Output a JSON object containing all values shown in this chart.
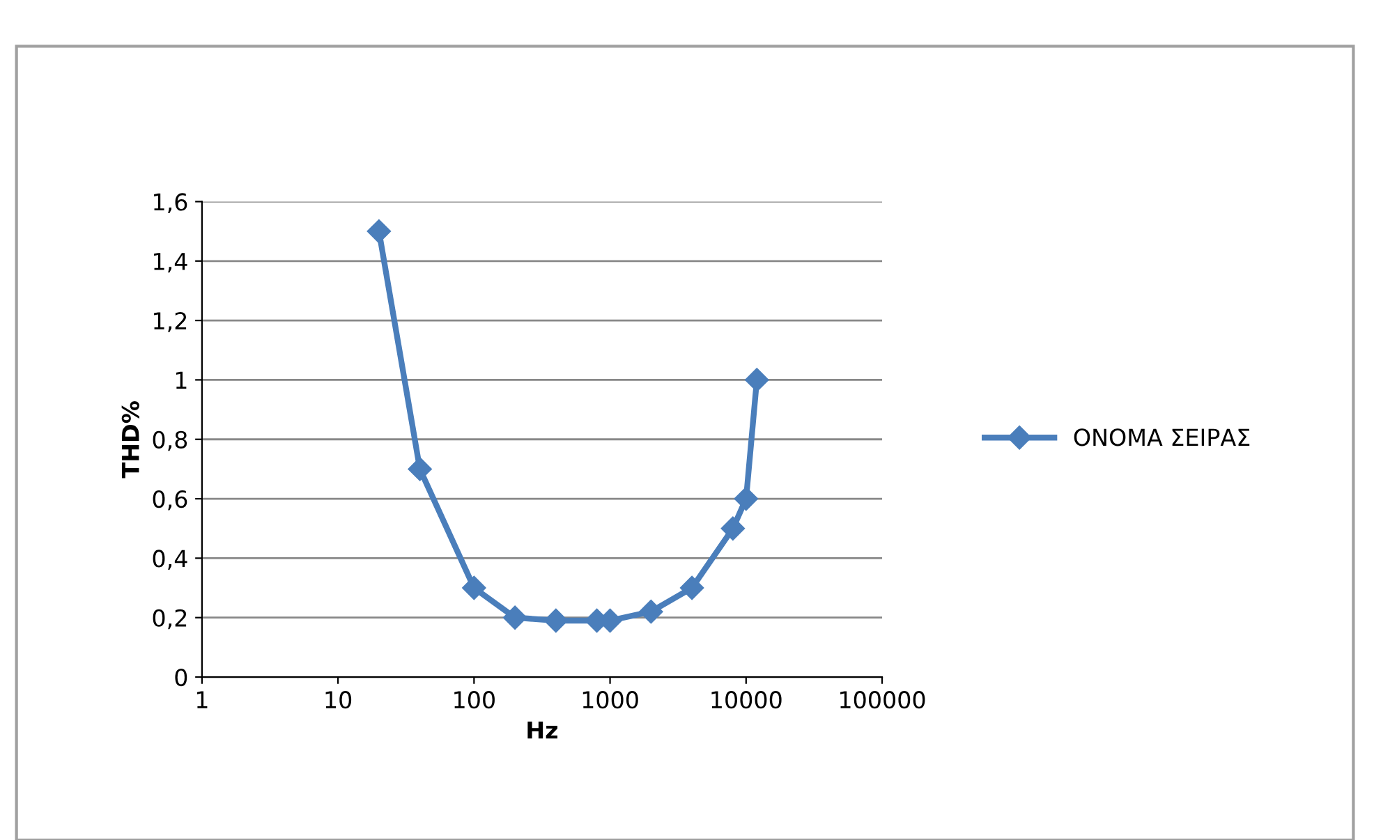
{
  "chart_data": {
    "type": "line",
    "xlabel": "Hz",
    "ylabel": "THD%",
    "log": "x",
    "x": [
      20,
      40,
      100,
      200,
      400,
      800,
      1000,
      2000,
      4000,
      8000,
      10000,
      12000
    ],
    "series": [
      {
        "name": "ΟΝΟΜΑ ΣΕΙΡΑΣ",
        "color": "#4a7ebb",
        "values": [
          1.5,
          0.7,
          0.3,
          0.2,
          0.19,
          0.19,
          0.19,
          0.22,
          0.3,
          0.5,
          0.6,
          1.0
        ]
      }
    ],
    "xlim": [
      1,
      100000
    ],
    "xticks": [
      1,
      10,
      100,
      1000,
      10000,
      100000
    ],
    "ylim": [
      0,
      1.6
    ],
    "yticks": [
      0,
      {
        "value": 0.2,
        "label": "0,2"
      },
      {
        "value": 0.4,
        "label": "0,4"
      },
      {
        "value": 0.6,
        "label": "0,6"
      },
      {
        "value": 0.8,
        "label": "0,8"
      },
      1,
      {
        "value": 1.2,
        "label": "1,2"
      },
      {
        "value": 1.4,
        "label": "1,4"
      },
      {
        "value": 1.6,
        "label": "1,6"
      }
    ],
    "grid": "y",
    "legend": "right",
    "marker": "diamond",
    "line_style": "solid"
  }
}
